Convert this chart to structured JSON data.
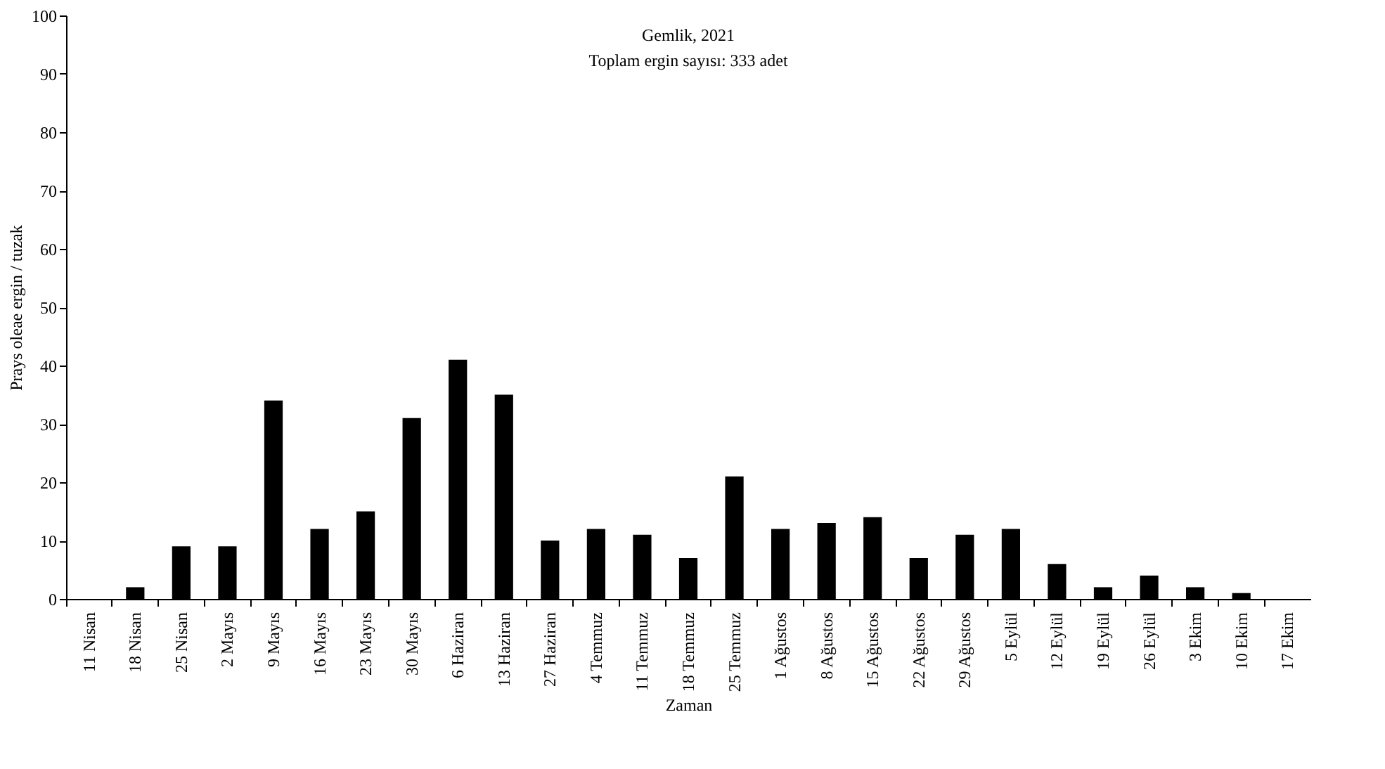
{
  "chart_data": {
    "type": "bar",
    "title": "Gemlik, 2021",
    "subtitle": "Toplam ergin sayısı: 333 adet",
    "xlabel": "Zaman",
    "ylabel": "Prays oleae ergin / tuzak",
    "categories": [
      "11 Nisan",
      "18 Nisan",
      "25 Nisan",
      "2 Mayıs",
      "9 Mayıs",
      "16 Mayıs",
      "23 Mayıs",
      "30 Mayıs",
      "6 Haziran",
      "13 Haziran",
      "27 Haziran",
      "4 Temmuz",
      "11 Temmuz",
      "18 Temmuz",
      "25 Temmuz",
      "1 Ağustos",
      "8 Ağustos",
      "15 Ağustos",
      "22 Ağustos",
      "29 Ağustos",
      "5 Eylül",
      "12 Eylül",
      "19 Eylül",
      "26 Eylül",
      "3 Ekim",
      "10 Ekim",
      "17 Ekim"
    ],
    "values": [
      0,
      2,
      9,
      9,
      34,
      12,
      15,
      31,
      41,
      35,
      10,
      12,
      11,
      7,
      21,
      12,
      13,
      14,
      7,
      11,
      12,
      6,
      2,
      4,
      2,
      1,
      0
    ],
    "color": "#000000",
    "ylim": [
      0,
      100
    ],
    "yticks": [
      0,
      10,
      20,
      30,
      40,
      50,
      60,
      70,
      80,
      90,
      100
    ],
    "grid": false
  }
}
